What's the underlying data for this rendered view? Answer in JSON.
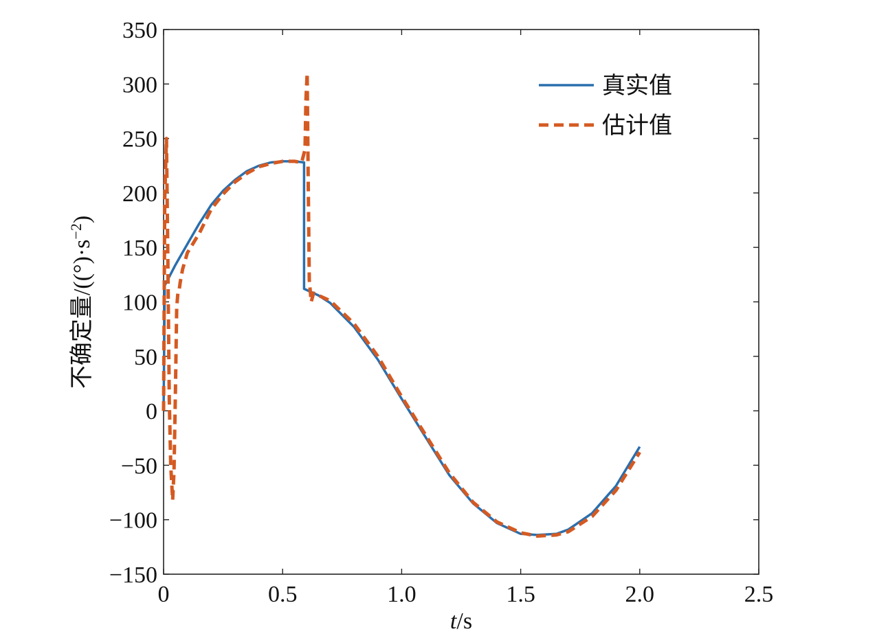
{
  "chart_data": {
    "type": "line",
    "xlabel": {
      "italic": "t",
      "rest": "/s"
    },
    "ylabel": "不确定量/((°)·s",
    "ylabel_sup": "−2",
    "ylabel_tail": ")",
    "xlim": [
      0,
      2.5
    ],
    "ylim": [
      -150,
      350
    ],
    "xticks": [
      0,
      0.5,
      1.0,
      1.5,
      2.0,
      2.5
    ],
    "xtick_labels": [
      "0",
      "0.5",
      "1.0",
      "1.5",
      "2.0",
      "2.5"
    ],
    "yticks": [
      -150,
      -100,
      -50,
      0,
      50,
      100,
      150,
      200,
      250,
      300,
      350
    ],
    "ytick_labels": [
      "−150",
      "−100",
      "−50",
      "0",
      "50",
      "100",
      "150",
      "200",
      "250",
      "300",
      "350"
    ],
    "grid": false,
    "legend_position": "top-right",
    "series": [
      {
        "name": "真实值",
        "color": "#2a6fad",
        "style": "solid",
        "x": [
          0,
          0.005,
          0.05,
          0.1,
          0.15,
          0.2,
          0.25,
          0.3,
          0.35,
          0.4,
          0.45,
          0.5,
          0.55,
          0.59,
          0.59,
          0.65,
          0.7,
          0.8,
          0.9,
          1.0,
          1.1,
          1.2,
          1.3,
          1.4,
          1.5,
          1.57,
          1.65,
          1.7,
          1.8,
          1.9,
          2.0
        ],
        "y": [
          0,
          115,
          134,
          153,
          172,
          189,
          202,
          212,
          220,
          225,
          228,
          229,
          229,
          228,
          112,
          106,
          99,
          77,
          47,
          11,
          -24,
          -59,
          -85,
          -103,
          -113,
          -114,
          -113,
          -109,
          -94,
          -69,
          -33
        ]
      },
      {
        "name": "估计值",
        "color": "#d45a22",
        "style": "dashed",
        "x": [
          0,
          0.005,
          0.012,
          0.018,
          0.024,
          0.03,
          0.038,
          0.044,
          0.05,
          0.055,
          0.06,
          0.065,
          0.07,
          0.08,
          0.1,
          0.15,
          0.2,
          0.25,
          0.3,
          0.35,
          0.4,
          0.45,
          0.5,
          0.55,
          0.58,
          0.594,
          0.598,
          0.603,
          0.607,
          0.612,
          0.62,
          0.63,
          0.65,
          0.7,
          0.8,
          0.9,
          1.0,
          1.1,
          1.2,
          1.3,
          1.4,
          1.5,
          1.57,
          1.65,
          1.7,
          1.8,
          1.9,
          2.0
        ],
        "y": [
          0,
          195,
          250,
          140,
          10,
          -50,
          -82,
          -55,
          20,
          95,
          108,
          110,
          118,
          130,
          145,
          163,
          185,
          199,
          210,
          218,
          224,
          227,
          229,
          229,
          228,
          240,
          285,
          310,
          220,
          120,
          100,
          108,
          106,
          101,
          80,
          50,
          13,
          -22,
          -57,
          -84,
          -102,
          -112,
          -115,
          -114,
          -111,
          -97,
          -73,
          -38
        ]
      }
    ]
  }
}
